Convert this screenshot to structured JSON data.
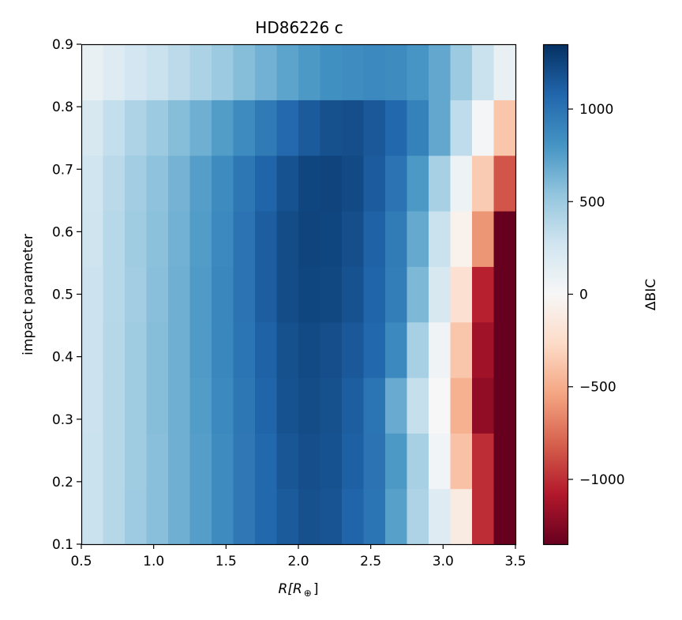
{
  "chart_data": {
    "type": "heatmap",
    "title": "HD86226 c",
    "xlabel_main": "R",
    "xlabel_bracket": "[R",
    "xlabel_sub": "⊕",
    "xlabel_close": "]",
    "ylabel": "impact parameter",
    "colorbar_label": "ΔBIC",
    "colormap": "RdBu",
    "xlim": [
      0.5,
      3.5
    ],
    "ylim": [
      0.1,
      0.9
    ],
    "x_ticks": [
      0.5,
      1.0,
      1.5,
      2.0,
      2.5,
      3.0,
      3.5
    ],
    "x_tick_labels": [
      "0.5",
      "1.0",
      "1.5",
      "2.0",
      "2.5",
      "3.0",
      "3.5"
    ],
    "y_ticks": [
      0.1,
      0.2,
      0.3,
      0.4,
      0.5,
      0.6,
      0.7,
      0.8,
      0.9
    ],
    "y_tick_labels": [
      "0.1",
      "0.2",
      "0.3",
      "0.4",
      "0.5",
      "0.6",
      "0.7",
      "0.8",
      "0.9"
    ],
    "clim": [
      -1350,
      1350
    ],
    "colorbar_ticks": [
      1000,
      500,
      0,
      -500,
      -1000
    ],
    "colorbar_tick_labels": [
      "1000",
      "500",
      "0",
      "−500",
      "−1000"
    ],
    "x_cells": 20,
    "y_cells": 9,
    "values": [
      [
        300,
        390,
        490,
        570,
        660,
        750,
        860,
        970,
        1070,
        1140,
        1190,
        1170,
        1090,
        990,
        740,
        420,
        180,
        -120,
        -1000,
        -1350
      ],
      [
        300,
        390,
        480,
        570,
        660,
        750,
        860,
        970,
        1070,
        1160,
        1200,
        1180,
        1110,
        1000,
        780,
        450,
        40,
        -400,
        -1000,
        -1350
      ],
      [
        290,
        390,
        480,
        580,
        660,
        760,
        870,
        980,
        1090,
        1180,
        1210,
        1190,
        1120,
        990,
        680,
        320,
        0,
        -480,
        -1200,
        -1350
      ],
      [
        290,
        390,
        480,
        580,
        660,
        770,
        880,
        990,
        1100,
        1190,
        1220,
        1200,
        1150,
        1070,
        870,
        450,
        60,
        -380,
        -1150,
        -1350
      ],
      [
        290,
        380,
        470,
        570,
        660,
        770,
        880,
        1000,
        1120,
        1210,
        1240,
        1230,
        1180,
        1090,
        940,
        610,
        220,
        -210,
        -1050,
        -1350
      ],
      [
        280,
        380,
        480,
        560,
        650,
        760,
        870,
        1000,
        1120,
        1210,
        1250,
        1240,
        1200,
        1100,
        950,
        690,
        300,
        -60,
        -600,
        -1350
      ],
      [
        270,
        370,
        470,
        550,
        640,
        750,
        860,
        980,
        1090,
        1180,
        1240,
        1250,
        1220,
        1130,
        1000,
        780,
        450,
        70,
        -350,
        -850
      ],
      [
        230,
        330,
        420,
        500,
        580,
        660,
        760,
        860,
        960,
        1060,
        1140,
        1190,
        1200,
        1150,
        1070,
        920,
        700,
        350,
        30,
        -380
      ],
      [
        110,
        180,
        250,
        300,
        360,
        430,
        500,
        580,
        650,
        720,
        780,
        830,
        850,
        870,
        860,
        800,
        700,
        500,
        300,
        100
      ]
    ]
  }
}
